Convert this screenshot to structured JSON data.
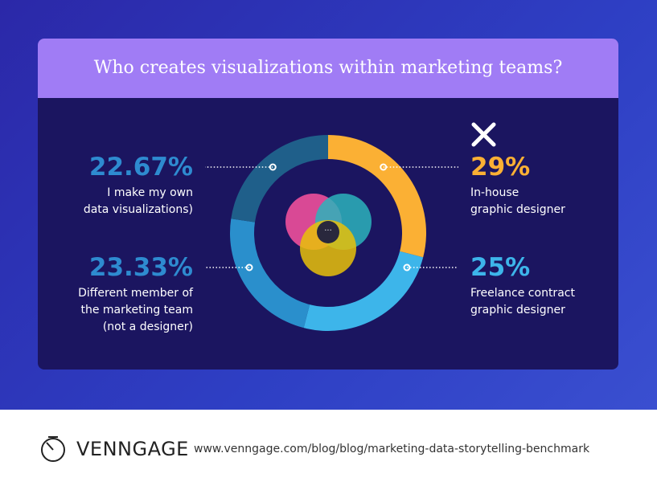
{
  "chart_data": {
    "type": "donut",
    "title": "Who creates visualizations within marketing teams?",
    "categories": [
      "In-house\ngraphic designer",
      "Freelance contract\ngraphic designer",
      "Different member of\nthe marketing team\n(not a designer)",
      "I make my own\ndata visualizations)"
    ],
    "values": [
      29,
      25,
      23.33,
      22.67
    ],
    "value_labels": [
      "29%",
      "25%",
      "23.33%",
      "22.67%"
    ],
    "colors": [
      "#fbb034",
      "#3db5ea",
      "#2a8fcc",
      "#1f5f8a"
    ]
  },
  "footer": {
    "brand": "VENNGAGE",
    "url": "www.venngage.com/blog/blog/marketing-data-storytelling-benchmark"
  }
}
